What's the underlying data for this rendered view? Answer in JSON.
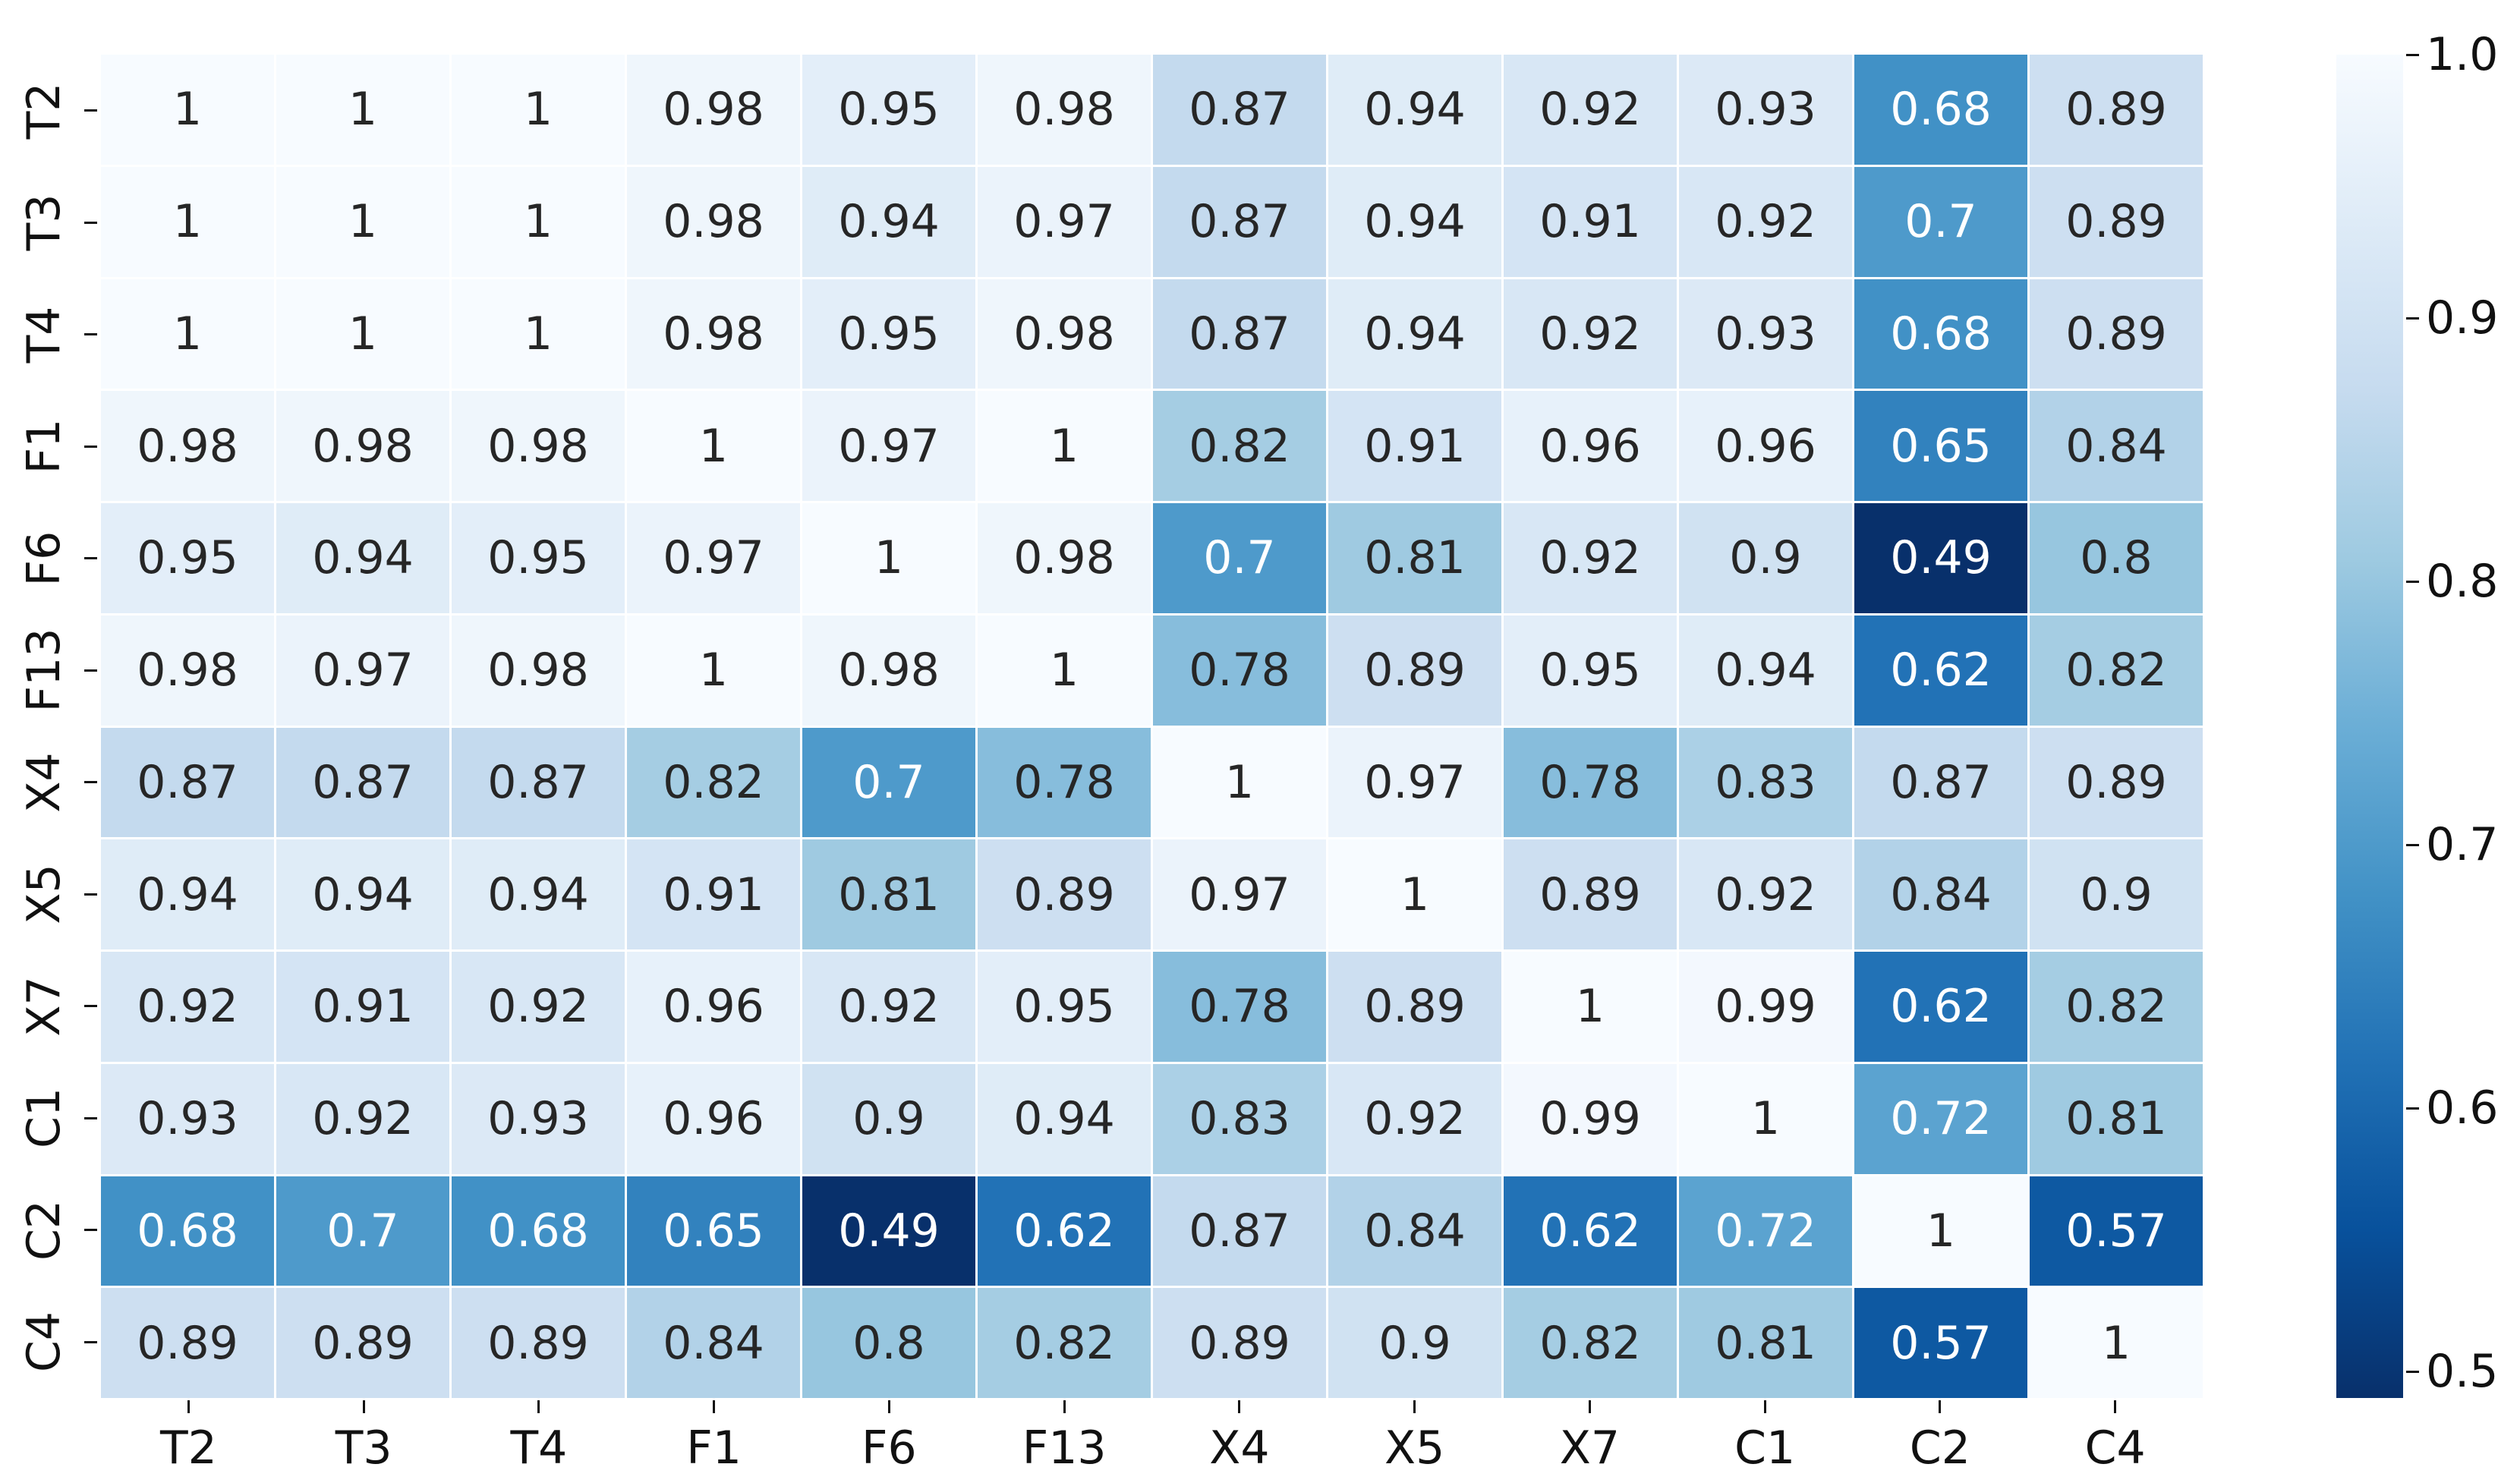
{
  "figure": {
    "background_color": "#ffffff"
  },
  "chart_data": {
    "type": "heatmap",
    "title": "",
    "xlabel": "",
    "ylabel": "",
    "x_labels": [
      "T2",
      "T3",
      "T4",
      "F1",
      "F6",
      "F13",
      "X4",
      "X5",
      "X7",
      "C1",
      "C2",
      "C4"
    ],
    "y_labels": [
      "T2",
      "T3",
      "T4",
      "F1",
      "F6",
      "F13",
      "X4",
      "X5",
      "X7",
      "C1",
      "C2",
      "C4"
    ],
    "matrix": [
      [
        1,
        1,
        1,
        0.98,
        0.95,
        0.98,
        0.87,
        0.94,
        0.92,
        0.93,
        0.68,
        0.89
      ],
      [
        1,
        1,
        1,
        0.98,
        0.94,
        0.97,
        0.87,
        0.94,
        0.91,
        0.92,
        0.7,
        0.89
      ],
      [
        1,
        1,
        1,
        0.98,
        0.95,
        0.98,
        0.87,
        0.94,
        0.92,
        0.93,
        0.68,
        0.89
      ],
      [
        0.98,
        0.98,
        0.98,
        1,
        0.97,
        1,
        0.82,
        0.91,
        0.96,
        0.96,
        0.65,
        0.84
      ],
      [
        0.95,
        0.94,
        0.95,
        0.97,
        1,
        0.98,
        0.7,
        0.81,
        0.92,
        0.9,
        0.49,
        0.8
      ],
      [
        0.98,
        0.97,
        0.98,
        1,
        0.98,
        1,
        0.78,
        0.89,
        0.95,
        0.94,
        0.62,
        0.82
      ],
      [
        0.87,
        0.87,
        0.87,
        0.82,
        0.7,
        0.78,
        1,
        0.97,
        0.78,
        0.83,
        0.87,
        0.89
      ],
      [
        0.94,
        0.94,
        0.94,
        0.91,
        0.81,
        0.89,
        0.97,
        1,
        0.89,
        0.92,
        0.84,
        0.9
      ],
      [
        0.92,
        0.91,
        0.92,
        0.96,
        0.92,
        0.95,
        0.78,
        0.89,
        1,
        0.99,
        0.62,
        0.82
      ],
      [
        0.93,
        0.92,
        0.93,
        0.96,
        0.9,
        0.94,
        0.83,
        0.92,
        0.99,
        1,
        0.72,
        0.81
      ],
      [
        0.68,
        0.7,
        0.68,
        0.65,
        0.49,
        0.62,
        0.87,
        0.84,
        0.62,
        0.72,
        1,
        0.57
      ],
      [
        0.89,
        0.89,
        0.89,
        0.84,
        0.8,
        0.82,
        0.89,
        0.9,
        0.82,
        0.81,
        0.57,
        1
      ]
    ],
    "colormap": {
      "style": "Blues_r",
      "vmin": 0.49,
      "vmax": 1.0,
      "blues_anchors": [
        "#f7fbff",
        "#deebf7",
        "#c6dbef",
        "#9ecae1",
        "#6baed6",
        "#4292c6",
        "#2171b5",
        "#08519c",
        "#08306b"
      ]
    },
    "gridline_color": "#ffffff",
    "annotation_colors": {
      "dark": "#262626",
      "light": "#ffffff"
    },
    "axis_tick_color": "#111111",
    "grid": false,
    "colorbar": {
      "position": "right",
      "ticks": [
        {
          "label": "1.0",
          "value": 1.0
        },
        {
          "label": "0.9",
          "value": 0.9
        },
        {
          "label": "0.8",
          "value": 0.8
        },
        {
          "label": "0.7",
          "value": 0.7
        },
        {
          "label": "0.6",
          "value": 0.6
        },
        {
          "label": "0.5",
          "value": 0.5
        }
      ]
    }
  }
}
